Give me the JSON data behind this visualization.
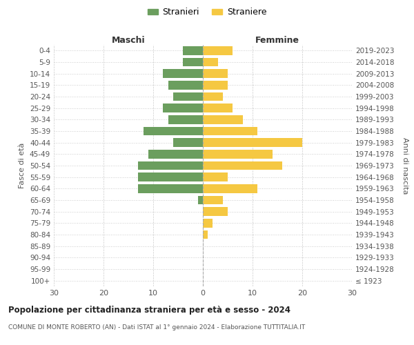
{
  "age_groups": [
    "100+",
    "95-99",
    "90-94",
    "85-89",
    "80-84",
    "75-79",
    "70-74",
    "65-69",
    "60-64",
    "55-59",
    "50-54",
    "45-49",
    "40-44",
    "35-39",
    "30-34",
    "25-29",
    "20-24",
    "15-19",
    "10-14",
    "5-9",
    "0-4"
  ],
  "birth_years": [
    "≤ 1923",
    "1924-1928",
    "1929-1933",
    "1934-1938",
    "1939-1943",
    "1944-1948",
    "1949-1953",
    "1954-1958",
    "1959-1963",
    "1964-1968",
    "1969-1973",
    "1974-1978",
    "1979-1983",
    "1984-1988",
    "1989-1993",
    "1994-1998",
    "1999-2003",
    "2004-2008",
    "2009-2013",
    "2014-2018",
    "2019-2023"
  ],
  "males": [
    0,
    0,
    0,
    0,
    0,
    0,
    0,
    1,
    13,
    13,
    13,
    11,
    6,
    12,
    7,
    8,
    6,
    7,
    8,
    4,
    4
  ],
  "females": [
    0,
    0,
    0,
    0,
    1,
    2,
    5,
    4,
    11,
    5,
    16,
    14,
    20,
    11,
    8,
    6,
    4,
    5,
    5,
    3,
    6
  ],
  "male_color": "#6b9e5e",
  "female_color": "#f5c842",
  "title": "Popolazione per cittadinanza straniera per età e sesso - 2024",
  "subtitle": "COMUNE DI MONTE ROBERTO (AN) - Dati ISTAT al 1° gennaio 2024 - Elaborazione TUTTITALIA.IT",
  "legend_male": "Stranieri",
  "legend_female": "Straniere",
  "xlabel_left": "Maschi",
  "xlabel_right": "Femmine",
  "ylabel_left": "Fasce di età",
  "ylabel_right": "Anni di nascita",
  "xlim": 30,
  "background_color": "#ffffff",
  "grid_color": "#cccccc",
  "text_color": "#555555"
}
